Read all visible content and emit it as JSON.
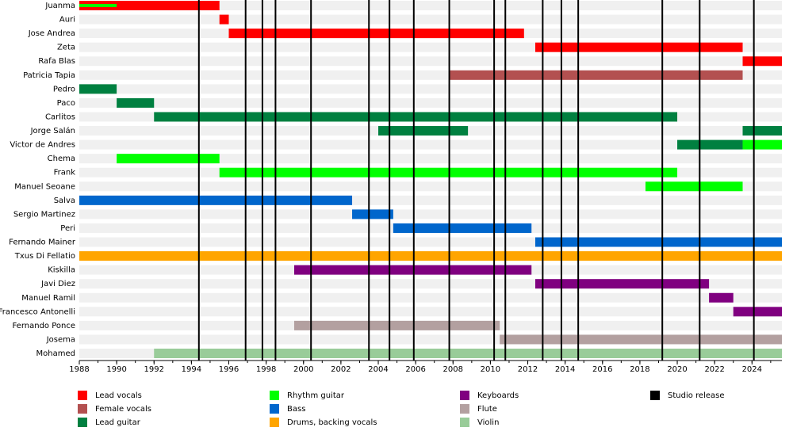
{
  "chart_data": {
    "type": "timeline",
    "xlim": [
      1988,
      2025.6
    ],
    "xticks": [
      1988,
      1990,
      1992,
      1994,
      1996,
      1998,
      2000,
      2002,
      2004,
      2006,
      2008,
      2010,
      2012,
      2014,
      2016,
      2018,
      2020,
      2022,
      2024
    ],
    "roles": [
      {
        "name": "Lead vocals",
        "color": "#ff0000"
      },
      {
        "name": "Female vocals",
        "color": "#b35050"
      },
      {
        "name": "Lead guitar",
        "color": "#008040"
      },
      {
        "name": "Rhythm guitar",
        "color": "#00ff00"
      },
      {
        "name": "Bass",
        "color": "#0066cc"
      },
      {
        "name": "Drums, backing vocals",
        "color": "#ffa500"
      },
      {
        "name": "Keyboards",
        "color": "#800080"
      },
      {
        "name": "Flute",
        "color": "#b3a0a0"
      },
      {
        "name": "Violin",
        "color": "#99cc99"
      }
    ],
    "releases": {
      "name": "Studio release",
      "color": "#000000",
      "x": [
        1994.4,
        1996.9,
        1997.8,
        1998.5,
        2000.4,
        2003.5,
        2004.6,
        2005.9,
        2007.8,
        2010.2,
        2010.8,
        2012.8,
        2013.8,
        2014.7,
        2019.2,
        2021.2,
        2024.1
      ]
    },
    "members": [
      {
        "name": "Juanma",
        "bars": [
          {
            "role": "Lead vocals",
            "start": 1988,
            "end": 1995.5
          },
          {
            "role": "Rhythm guitar",
            "start": 1988,
            "end": 1990
          }
        ]
      },
      {
        "name": "Auri",
        "bars": [
          {
            "role": "Lead vocals",
            "start": 1995.5,
            "end": 1996
          }
        ]
      },
      {
        "name": "Jose Andrea",
        "bars": [
          {
            "role": "Lead vocals",
            "start": 1996,
            "end": 2011.8
          }
        ]
      },
      {
        "name": "Zeta",
        "bars": [
          {
            "role": "Lead vocals",
            "start": 2012.4,
            "end": 2023.5
          }
        ]
      },
      {
        "name": "Rafa Blas",
        "bars": [
          {
            "role": "Lead vocals",
            "start": 2023.5,
            "end": 2025.6
          }
        ]
      },
      {
        "name": "Patricia Tapia",
        "bars": [
          {
            "role": "Female vocals",
            "start": 2007.8,
            "end": 2023.5
          }
        ]
      },
      {
        "name": "Pedro",
        "bars": [
          {
            "role": "Lead guitar",
            "start": 1988,
            "end": 1990
          }
        ]
      },
      {
        "name": "Paco",
        "bars": [
          {
            "role": "Lead guitar",
            "start": 1990,
            "end": 1992
          }
        ]
      },
      {
        "name": "Carlitos",
        "bars": [
          {
            "role": "Lead guitar",
            "start": 1992,
            "end": 2020
          }
        ]
      },
      {
        "name": "Jorge Salán",
        "bars": [
          {
            "role": "Lead guitar",
            "start": 2004,
            "end": 2008.8
          },
          {
            "role": "Lead guitar",
            "start": 2023.5,
            "end": 2025.6
          }
        ]
      },
      {
        "name": "Victor de Andres",
        "bars": [
          {
            "role": "Lead guitar",
            "start": 2020,
            "end": 2023.5
          },
          {
            "role": "Rhythm guitar",
            "start": 2023.5,
            "end": 2025.6
          }
        ]
      },
      {
        "name": "Chema",
        "bars": [
          {
            "role": "Rhythm guitar",
            "start": 1990,
            "end": 1995.5
          }
        ]
      },
      {
        "name": "Frank",
        "bars": [
          {
            "role": "Rhythm guitar",
            "start": 1995.5,
            "end": 2020
          }
        ]
      },
      {
        "name": "Manuel Seoane",
        "bars": [
          {
            "role": "Rhythm guitar",
            "start": 2018.3,
            "end": 2023.5
          }
        ]
      },
      {
        "name": "Salva",
        "bars": [
          {
            "role": "Bass",
            "start": 1988,
            "end": 2002.6
          }
        ]
      },
      {
        "name": "Sergio Martinez",
        "bars": [
          {
            "role": "Bass",
            "start": 2002.6,
            "end": 2004.8
          }
        ]
      },
      {
        "name": "Peri",
        "bars": [
          {
            "role": "Bass",
            "start": 2004.8,
            "end": 2012.2
          }
        ]
      },
      {
        "name": "Fernando Mainer",
        "bars": [
          {
            "role": "Bass",
            "start": 2012.4,
            "end": 2025.6
          }
        ]
      },
      {
        "name": "Txus Di Fellatio",
        "bars": [
          {
            "role": "Drums, backing vocals",
            "start": 1988,
            "end": 2025.6
          }
        ]
      },
      {
        "name": "Kiskilla",
        "bars": [
          {
            "role": "Keyboards",
            "start": 1999.5,
            "end": 2012.2
          }
        ]
      },
      {
        "name": "Javi Diez",
        "bars": [
          {
            "role": "Keyboards",
            "start": 2012.4,
            "end": 2021.7
          }
        ]
      },
      {
        "name": "Manuel Ramil",
        "bars": [
          {
            "role": "Keyboards",
            "start": 2021.7,
            "end": 2023
          }
        ]
      },
      {
        "name": "Francesco Antonelli",
        "bars": [
          {
            "role": "Keyboards",
            "start": 2023,
            "end": 2025.6
          }
        ]
      },
      {
        "name": "Fernando Ponce",
        "bars": [
          {
            "role": "Flute",
            "start": 1999.5,
            "end": 2010.5
          }
        ]
      },
      {
        "name": "Josema",
        "bars": [
          {
            "role": "Flute",
            "start": 2010.5,
            "end": 2025.6
          }
        ]
      },
      {
        "name": "Mohamed",
        "bars": [
          {
            "role": "Violin",
            "start": 1992,
            "end": 2025.6
          }
        ]
      }
    ]
  }
}
